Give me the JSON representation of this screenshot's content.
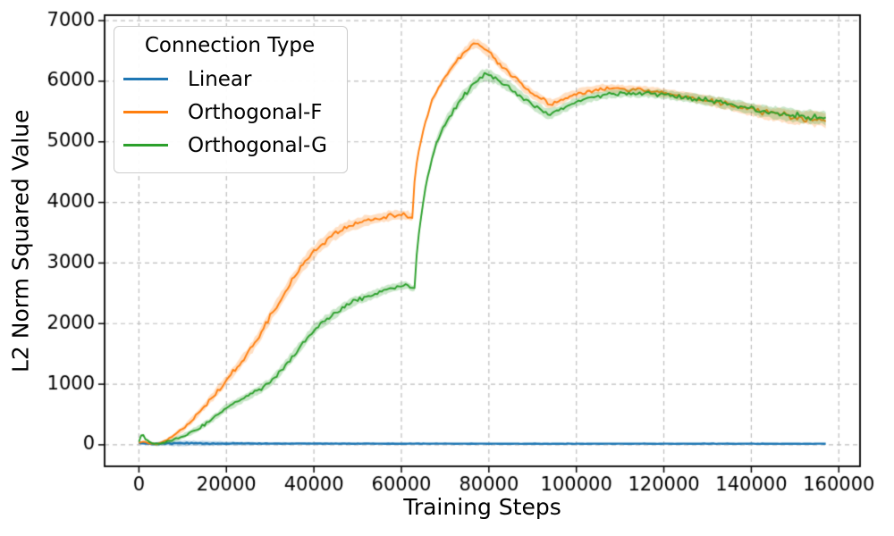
{
  "chart_data": {
    "type": "line",
    "title": "",
    "xlabel": "Training Steps",
    "ylabel": "L2 Norm Squared Value",
    "xlim": [
      -7850,
      164850
    ],
    "ylim": [
      -355,
      7090
    ],
    "xticks": {
      "values": [
        0,
        20000,
        40000,
        60000,
        80000,
        100000,
        120000,
        140000,
        160000
      ],
      "labels": [
        "0",
        "20000",
        "40000",
        "60000",
        "80000",
        "100000",
        "120000",
        "140000",
        "160000"
      ]
    },
    "yticks": {
      "values": [
        0,
        1000,
        2000,
        3000,
        4000,
        5000,
        6000,
        7000
      ],
      "labels": [
        "0",
        "1000",
        "2000",
        "3000",
        "4000",
        "5000",
        "6000",
        "7000"
      ]
    },
    "grid": {
      "visible": true,
      "style": "dashed",
      "color": "#bdbdbd"
    },
    "legend": {
      "title": "Connection Type",
      "position": "upper-left"
    },
    "band_alpha": 0.25,
    "series": [
      {
        "name": "Linear",
        "color": "#1f77b4",
        "line_width": 2.4,
        "noise_factor": 0.3,
        "points": [
          [
            0,
            30
          ],
          [
            1000,
            22
          ],
          [
            3000,
            15
          ],
          [
            6000,
            22
          ],
          [
            10000,
            25
          ],
          [
            20000,
            22
          ],
          [
            40000,
            20
          ],
          [
            80000,
            18
          ],
          [
            120000,
            18
          ],
          [
            157000,
            18
          ]
        ],
        "band": [
          [
            0,
            12
          ],
          [
            4000,
            30
          ],
          [
            8000,
            45
          ],
          [
            15000,
            40
          ],
          [
            25000,
            25
          ],
          [
            40000,
            15
          ],
          [
            80000,
            10
          ],
          [
            157000,
            10
          ]
        ]
      },
      {
        "name": "Orthogonal-F",
        "color": "#ff7f0e",
        "line_width": 1.9,
        "noise_factor": 0.62,
        "points": [
          [
            0,
            35
          ],
          [
            1200,
            55
          ],
          [
            2500,
            25
          ],
          [
            4000,
            12
          ],
          [
            6000,
            60
          ],
          [
            8000,
            150
          ],
          [
            10000,
            260
          ],
          [
            12000,
            400
          ],
          [
            14000,
            560
          ],
          [
            16000,
            720
          ],
          [
            18000,
            890
          ],
          [
            20000,
            1070
          ],
          [
            22500,
            1290
          ],
          [
            25000,
            1520
          ],
          [
            27500,
            1790
          ],
          [
            30000,
            2120
          ],
          [
            32500,
            2420
          ],
          [
            35000,
            2700
          ],
          [
            38000,
            3020
          ],
          [
            40000,
            3180
          ],
          [
            42000,
            3320
          ],
          [
            44000,
            3440
          ],
          [
            46000,
            3530
          ],
          [
            48000,
            3610
          ],
          [
            50000,
            3660
          ],
          [
            52000,
            3700
          ],
          [
            54000,
            3730
          ],
          [
            56000,
            3760
          ],
          [
            58000,
            3780
          ],
          [
            60000,
            3790
          ],
          [
            61500,
            3785
          ],
          [
            62300,
            3740
          ],
          [
            62700,
            3770
          ],
          [
            62900,
            4280
          ],
          [
            63400,
            4620
          ],
          [
            64400,
            5000
          ],
          [
            65500,
            5330
          ],
          [
            67000,
            5670
          ],
          [
            68500,
            5890
          ],
          [
            70000,
            6060
          ],
          [
            71500,
            6220
          ],
          [
            73000,
            6370
          ],
          [
            74500,
            6490
          ],
          [
            75800,
            6580
          ],
          [
            76800,
            6620
          ],
          [
            78000,
            6590
          ],
          [
            79000,
            6540
          ],
          [
            80500,
            6440
          ],
          [
            82000,
            6330
          ],
          [
            84000,
            6190
          ],
          [
            86000,
            6040
          ],
          [
            88000,
            5900
          ],
          [
            90000,
            5790
          ],
          [
            92000,
            5700
          ],
          [
            93500,
            5640
          ],
          [
            94500,
            5630
          ],
          [
            96000,
            5680
          ],
          [
            98000,
            5740
          ],
          [
            100000,
            5790
          ],
          [
            102000,
            5830
          ],
          [
            104000,
            5860
          ],
          [
            106000,
            5880
          ],
          [
            108000,
            5880
          ],
          [
            110000,
            5870
          ],
          [
            112000,
            5860
          ],
          [
            114000,
            5860
          ],
          [
            116000,
            5850
          ],
          [
            118000,
            5830
          ],
          [
            120000,
            5810
          ],
          [
            122000,
            5790
          ],
          [
            124000,
            5760
          ],
          [
            126000,
            5740
          ],
          [
            128000,
            5710
          ],
          [
            130000,
            5680
          ],
          [
            132000,
            5650
          ],
          [
            134000,
            5620
          ],
          [
            136000,
            5590
          ],
          [
            138000,
            5560
          ],
          [
            140000,
            5530
          ],
          [
            142000,
            5500
          ],
          [
            144000,
            5470
          ],
          [
            146000,
            5450
          ],
          [
            148000,
            5430
          ],
          [
            150000,
            5410
          ],
          [
            152000,
            5395
          ],
          [
            154000,
            5380
          ],
          [
            157000,
            5360
          ]
        ],
        "band": [
          [
            0,
            10
          ],
          [
            6000,
            25
          ],
          [
            10000,
            50
          ],
          [
            20000,
            80
          ],
          [
            30000,
            105
          ],
          [
            40000,
            110
          ],
          [
            50000,
            90
          ],
          [
            60000,
            80
          ],
          [
            62700,
            70
          ],
          [
            64000,
            40
          ],
          [
            70000,
            60
          ],
          [
            76000,
            80
          ],
          [
            82000,
            80
          ],
          [
            90000,
            75
          ],
          [
            94000,
            80
          ],
          [
            100000,
            70
          ],
          [
            110000,
            65
          ],
          [
            120000,
            70
          ],
          [
            130000,
            80
          ],
          [
            140000,
            95
          ],
          [
            150000,
            110
          ],
          [
            157000,
            120
          ]
        ]
      },
      {
        "name": "Orthogonal-G",
        "color": "#2ca02c",
        "line_width": 1.9,
        "noise_factor": 0.6,
        "points": [
          [
            0,
            45
          ],
          [
            700,
            190
          ],
          [
            1500,
            95
          ],
          [
            2800,
            30
          ],
          [
            4000,
            10
          ],
          [
            6000,
            35
          ],
          [
            8000,
            80
          ],
          [
            10000,
            140
          ],
          [
            12000,
            210
          ],
          [
            14000,
            290
          ],
          [
            16000,
            380
          ],
          [
            18000,
            490
          ],
          [
            20000,
            620
          ],
          [
            22500,
            710
          ],
          [
            25000,
            810
          ],
          [
            27500,
            910
          ],
          [
            30000,
            1030
          ],
          [
            32500,
            1230
          ],
          [
            35000,
            1450
          ],
          [
            37500,
            1680
          ],
          [
            40000,
            1900
          ],
          [
            42000,
            2020
          ],
          [
            44000,
            2120
          ],
          [
            46000,
            2230
          ],
          [
            48000,
            2320
          ],
          [
            50000,
            2390
          ],
          [
            52000,
            2440
          ],
          [
            54000,
            2490
          ],
          [
            56000,
            2540
          ],
          [
            58000,
            2590
          ],
          [
            60000,
            2620
          ],
          [
            61500,
            2630
          ],
          [
            62600,
            2580
          ],
          [
            63100,
            2600
          ],
          [
            63300,
            3020
          ],
          [
            64000,
            3480
          ],
          [
            65000,
            4000
          ],
          [
            66000,
            4430
          ],
          [
            67200,
            4800
          ],
          [
            68100,
            5010
          ],
          [
            69500,
            5230
          ],
          [
            71000,
            5430
          ],
          [
            72500,
            5590
          ],
          [
            74000,
            5740
          ],
          [
            75500,
            5870
          ],
          [
            77000,
            5990
          ],
          [
            78500,
            6080
          ],
          [
            79500,
            6100
          ],
          [
            80500,
            6080
          ],
          [
            82000,
            6020
          ],
          [
            84000,
            5930
          ],
          [
            86000,
            5830
          ],
          [
            88000,
            5720
          ],
          [
            90000,
            5610
          ],
          [
            91500,
            5540
          ],
          [
            93000,
            5480
          ],
          [
            93900,
            5460
          ],
          [
            95000,
            5490
          ],
          [
            96500,
            5540
          ],
          [
            98000,
            5590
          ],
          [
            100000,
            5650
          ],
          [
            102000,
            5700
          ],
          [
            104000,
            5740
          ],
          [
            106000,
            5770
          ],
          [
            108000,
            5790
          ],
          [
            110000,
            5800
          ],
          [
            112000,
            5805
          ],
          [
            114000,
            5805
          ],
          [
            116000,
            5800
          ],
          [
            118000,
            5790
          ],
          [
            120000,
            5780
          ],
          [
            122000,
            5765
          ],
          [
            124000,
            5745
          ],
          [
            126000,
            5725
          ],
          [
            128000,
            5705
          ],
          [
            130000,
            5685
          ],
          [
            132000,
            5660
          ],
          [
            134000,
            5635
          ],
          [
            136000,
            5605
          ],
          [
            138000,
            5575
          ],
          [
            140000,
            5545
          ],
          [
            142000,
            5520
          ],
          [
            144000,
            5495
          ],
          [
            146000,
            5470
          ],
          [
            148000,
            5450
          ],
          [
            150000,
            5435
          ],
          [
            152000,
            5420
          ],
          [
            154000,
            5410
          ],
          [
            157000,
            5400
          ]
        ],
        "band": [
          [
            0,
            20
          ],
          [
            6000,
            30
          ],
          [
            10000,
            40
          ],
          [
            20000,
            60
          ],
          [
            30000,
            75
          ],
          [
            40000,
            85
          ],
          [
            50000,
            75
          ],
          [
            60000,
            65
          ],
          [
            63100,
            50
          ],
          [
            64500,
            60
          ],
          [
            70000,
            90
          ],
          [
            78000,
            95
          ],
          [
            84000,
            85
          ],
          [
            90000,
            80
          ],
          [
            94000,
            80
          ],
          [
            100000,
            70
          ],
          [
            110000,
            65
          ],
          [
            120000,
            70
          ],
          [
            130000,
            80
          ],
          [
            140000,
            95
          ],
          [
            150000,
            105
          ],
          [
            157000,
            110
          ]
        ]
      }
    ]
  }
}
